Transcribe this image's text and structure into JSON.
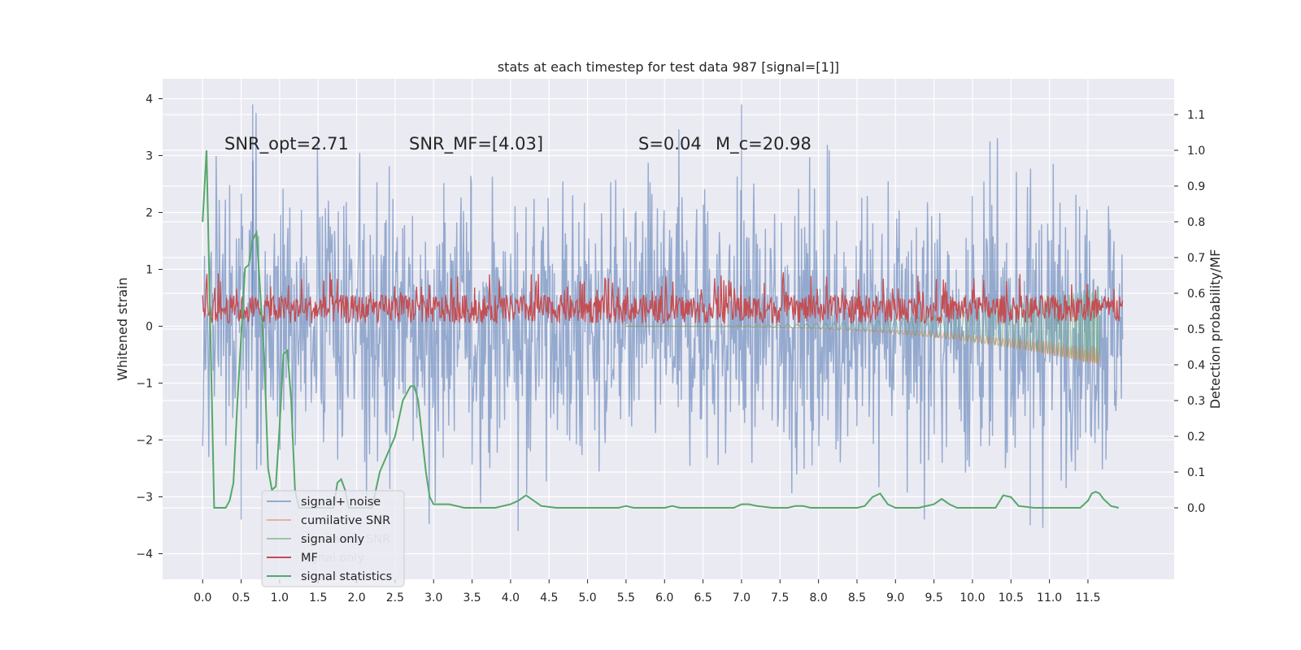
{
  "chart_data": {
    "type": "line",
    "title": "stats at each timestep for test data 987 [signal=[1]]",
    "xlabel": "",
    "ylabel": "Whitened strain",
    "y2label": "Detection probability/MF",
    "xlim": [
      -0.52,
      12.62
    ],
    "ylim": [
      -4.45,
      4.35
    ],
    "y2lim": [
      -0.2,
      1.2
    ],
    "xticks": [
      0.0,
      0.5,
      1.0,
      1.5,
      2.0,
      2.5,
      3.0,
      3.5,
      4.0,
      4.5,
      5.0,
      5.5,
      6.0,
      6.5,
      7.0,
      7.5,
      8.0,
      8.5,
      9.0,
      9.5,
      10.0,
      10.5,
      11.0,
      11.5
    ],
    "xtick_labels": [
      "0.0",
      "0.5",
      "1.0",
      "1.5",
      "2.0",
      "2.5",
      "3.0",
      "3.5",
      "4.0",
      "4.5",
      "5.0",
      "5.5",
      "6.0",
      "6.5",
      "7.0",
      "7.5",
      "8.0",
      "8.5",
      "9.0",
      "9.5",
      "10.0",
      "10.5",
      "11.0",
      "11.5"
    ],
    "yticks": [
      -4,
      -3,
      -2,
      -1,
      0,
      1,
      2,
      3,
      4
    ],
    "ytick_labels": [
      "−4",
      "−3",
      "−2",
      "−1",
      "0",
      "1",
      "2",
      "3",
      "4"
    ],
    "y2ticks": [
      0.0,
      0.1,
      0.2,
      0.3,
      0.4,
      0.5,
      0.6,
      0.7,
      0.8,
      0.9,
      1.0,
      1.1
    ],
    "y2tick_labels": [
      "0.0",
      "0.1",
      "0.2",
      "0.3",
      "0.4",
      "0.5",
      "0.6",
      "0.7",
      "0.8",
      "0.9",
      "1.0",
      "1.1"
    ],
    "annotations": [
      {
        "key": "snr_opt",
        "text": "SNR_opt=2.71",
        "x": 0.2,
        "y": 3.1
      },
      {
        "key": "snr_mf",
        "text": "SNR_MF=[4.03]",
        "x": 2.6,
        "y": 3.1
      },
      {
        "key": "s",
        "text": "S=0.04",
        "x": 5.6,
        "y": 3.1
      },
      {
        "key": "mc",
        "text": "M_c=20.98",
        "x": 6.6,
        "y": 3.1
      }
    ],
    "series": [
      {
        "name": "signal+ noise",
        "axis": "left",
        "color": "#4c72b0",
        "alpha": 0.55,
        "kind": "noise",
        "x_range": [
          0.0,
          11.95
        ],
        "amplitude": 1.2,
        "peaks": [
          3.9,
          -3.4,
          3.9,
          -3.5
        ]
      },
      {
        "name": "cumilative SNR",
        "axis": "left",
        "color": "#dd8452",
        "kind": "chirp-envelope",
        "x_range": [
          5.5,
          11.65
        ],
        "y_end": -0.7
      },
      {
        "name": "signal only",
        "axis": "left",
        "color": "#55a868",
        "kind": "chirp",
        "x_range": [
          5.5,
          11.65
        ],
        "amp_end": 0.7
      },
      {
        "name": "MF",
        "axis": "left",
        "color": "#c44e52",
        "kind": "band",
        "x_range": [
          0.0,
          11.95
        ],
        "low": 0.05,
        "high": 0.55,
        "peak": 1.0
      },
      {
        "name": "signal statistics",
        "axis": "right",
        "color": "#55a868",
        "kind": "line",
        "x": [
          0.0,
          0.05,
          0.1,
          0.15,
          0.2,
          0.25,
          0.3,
          0.35,
          0.4,
          0.45,
          0.5,
          0.55,
          0.6,
          0.65,
          0.7,
          0.75,
          0.8,
          0.85,
          0.9,
          0.95,
          1.0,
          1.05,
          1.1,
          1.15,
          1.2,
          1.25,
          1.3,
          1.4,
          1.5,
          1.6,
          1.7,
          1.75,
          1.8,
          1.85,
          1.9,
          1.95,
          2.0,
          2.1,
          2.2,
          2.3,
          2.4,
          2.5,
          2.6,
          2.7,
          2.75,
          2.8,
          2.85,
          2.9,
          2.95,
          3.0,
          3.1,
          3.2,
          3.4,
          3.6,
          3.8,
          4.0,
          4.1,
          4.2,
          4.3,
          4.4,
          4.6,
          5.0,
          5.4,
          5.5,
          5.6,
          6.0,
          6.1,
          6.2,
          6.4,
          6.6,
          6.8,
          6.9,
          7.0,
          7.1,
          7.2,
          7.4,
          7.6,
          7.7,
          7.8,
          7.9,
          8.0,
          8.3,
          8.5,
          8.6,
          8.7,
          8.8,
          8.9,
          9.0,
          9.3,
          9.5,
          9.6,
          9.7,
          9.8,
          10.0,
          10.3,
          10.4,
          10.5,
          10.6,
          10.8,
          11.0,
          11.4,
          11.5,
          11.55,
          11.6,
          11.65,
          11.7,
          11.8,
          11.9
        ],
        "y": [
          0.8,
          1.0,
          0.5,
          0.0,
          0.0,
          0.0,
          0.0,
          0.02,
          0.07,
          0.29,
          0.48,
          0.67,
          0.68,
          0.75,
          0.77,
          0.6,
          0.42,
          0.11,
          0.05,
          0.06,
          0.23,
          0.43,
          0.44,
          0.3,
          0.05,
          0.0,
          0.0,
          0.0,
          0.0,
          0.0,
          0.0,
          0.07,
          0.08,
          0.05,
          0.0,
          0.0,
          0.0,
          0.0,
          0.0,
          0.1,
          0.15,
          0.2,
          0.3,
          0.34,
          0.34,
          0.3,
          0.2,
          0.1,
          0.03,
          0.01,
          0.01,
          0.01,
          0.0,
          0.0,
          0.0,
          0.01,
          0.02,
          0.035,
          0.02,
          0.005,
          0.0,
          0.0,
          0.0,
          0.005,
          0.0,
          0.0,
          0.005,
          0.0,
          0.0,
          0.0,
          0.0,
          0.0,
          0.01,
          0.01,
          0.005,
          0.0,
          0.0,
          0.005,
          0.005,
          0.0,
          0.0,
          0.0,
          0.0,
          0.005,
          0.03,
          0.04,
          0.01,
          0.0,
          0.0,
          0.01,
          0.025,
          0.01,
          0.0,
          0.0,
          0.0,
          0.035,
          0.03,
          0.005,
          0.0,
          0.0,
          0.0,
          0.02,
          0.04,
          0.045,
          0.04,
          0.025,
          0.005,
          0.0
        ]
      }
    ],
    "legend": {
      "location": "lower-left",
      "entries": [
        {
          "label": "signal+ noise",
          "color": "#4c72b0",
          "alpha": 0.55
        },
        {
          "label": "cumilative SNR",
          "color": "#dd8452",
          "alpha": 0.55
        },
        {
          "label": "signal only",
          "color": "#55a868",
          "alpha": 0.55
        },
        {
          "label": "MF",
          "color": "#c44e52",
          "alpha": 1
        },
        {
          "label": "signal statistics",
          "color": "#55a868",
          "alpha": 1
        }
      ]
    },
    "ghost_legend": {
      "location": "lower-left",
      "entries": [
        "cumilative SNR",
        "signal only"
      ]
    },
    "grid": true
  },
  "colors": {
    "axes_bg": "#eaeaf2",
    "grid": "#ffffff",
    "text": "#262626"
  }
}
